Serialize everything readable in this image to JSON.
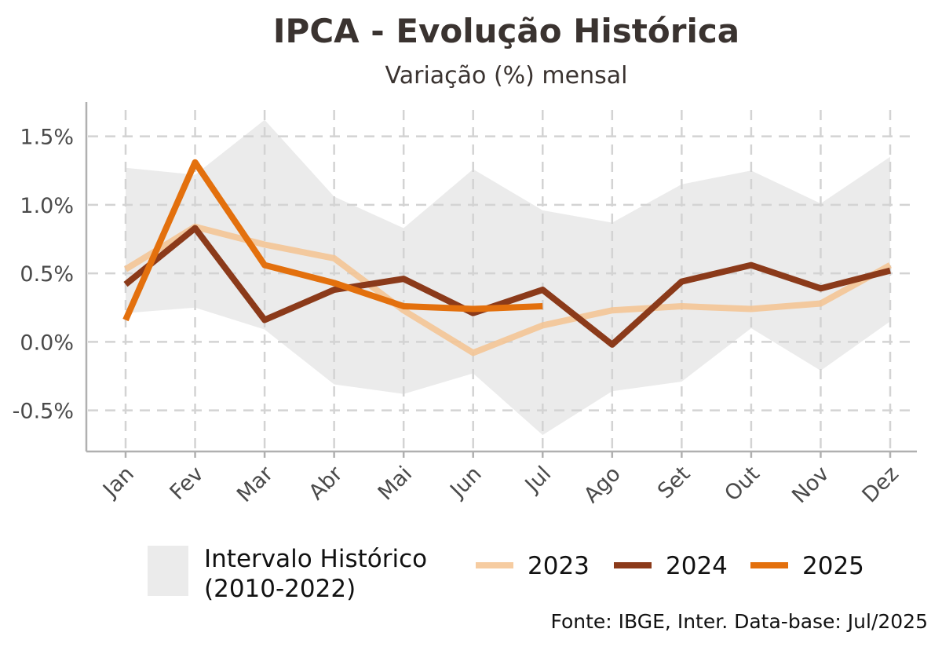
{
  "chart_data": {
    "type": "line",
    "title": "IPCA - Evolução Histórica",
    "subtitle": "Variação (%) mensal",
    "categories": [
      "Jan",
      "Fev",
      "Mar",
      "Abr",
      "Mai",
      "Jun",
      "Jul",
      "Ago",
      "Set",
      "Out",
      "Nov",
      "Dez"
    ],
    "y_ticks": [
      -0.5,
      0.0,
      0.5,
      1.0,
      1.5
    ],
    "y_tick_labels": [
      "-0.5%",
      "0.0%",
      "0.5%",
      "1.0%",
      "1.5%"
    ],
    "ylim": [
      -0.8,
      1.75
    ],
    "grid": true,
    "legend_position": "bottom",
    "band": {
      "name": "Intervalo Histórico\n(2010-2022)",
      "color": "#ebebeb",
      "low": [
        0.21,
        0.25,
        0.09,
        -0.31,
        -0.38,
        -0.23,
        -0.68,
        -0.36,
        -0.29,
        0.1,
        -0.21,
        0.15
      ],
      "high": [
        1.27,
        1.22,
        1.62,
        1.06,
        0.83,
        1.26,
        0.96,
        0.87,
        1.15,
        1.25,
        1.01,
        1.35
      ]
    },
    "series": [
      {
        "name": "2023",
        "color": "#f5c391",
        "opacity": 0.85,
        "values": [
          0.53,
          0.84,
          0.71,
          0.61,
          0.23,
          -0.08,
          0.12,
          0.23,
          0.26,
          0.24,
          0.28,
          0.56
        ]
      },
      {
        "name": "2024",
        "color": "#8b3a1a",
        "opacity": 1,
        "values": [
          0.42,
          0.83,
          0.16,
          0.38,
          0.46,
          0.21,
          0.38,
          -0.02,
          0.44,
          0.56,
          0.39,
          0.52
        ]
      },
      {
        "name": "2025",
        "color": "#e3700d",
        "opacity": 1,
        "values": [
          0.16,
          1.31,
          0.56,
          0.43,
          0.26,
          0.24,
          0.26,
          null,
          null,
          null,
          null,
          null
        ]
      }
    ],
    "source": "Fonte: IBGE, Inter. Data-base: Jul/2025"
  }
}
